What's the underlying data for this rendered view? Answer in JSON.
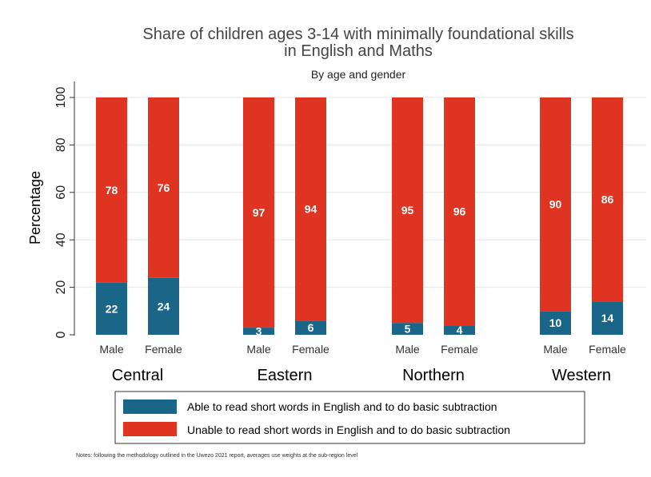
{
  "chart_data": {
    "type": "bar",
    "stacked": true,
    "title_line1": "Share of children ages 3-14 with minimally foundational skills",
    "title_line2": "in English and Maths",
    "subtitle": "By age and gender",
    "ylabel": "Percentage",
    "ylim": [
      0,
      100
    ],
    "yticks": [
      0,
      20,
      40,
      60,
      80,
      100
    ],
    "grid": true,
    "legend_position": "bottom",
    "groups": [
      {
        "name": "Central",
        "bars": [
          {
            "label": "Male",
            "able": 22,
            "unable": 78
          },
          {
            "label": "Female",
            "able": 24,
            "unable": 76
          }
        ]
      },
      {
        "name": "Eastern",
        "bars": [
          {
            "label": "Male",
            "able": 3,
            "unable": 97
          },
          {
            "label": "Female",
            "able": 6,
            "unable": 94
          }
        ]
      },
      {
        "name": "Northern",
        "bars": [
          {
            "label": "Male",
            "able": 5,
            "unable": 95
          },
          {
            "label": "Female",
            "able": 4,
            "unable": 96
          }
        ]
      },
      {
        "name": "Western",
        "bars": [
          {
            "label": "Male",
            "able": 10,
            "unable": 90
          },
          {
            "label": "Female",
            "able": 14,
            "unable": 86
          }
        ]
      }
    ],
    "series": [
      {
        "key": "able",
        "name": "Able to read short words in English and to do basic subtraction",
        "color": "#1a6688"
      },
      {
        "key": "unable",
        "name": "Unable to read short words in English and to do basic subtraction",
        "color": "#de3421"
      }
    ],
    "note": "Notes: following the methodology outlined in the Uwezo 2021 report, averages use weights at the sub-region level"
  }
}
